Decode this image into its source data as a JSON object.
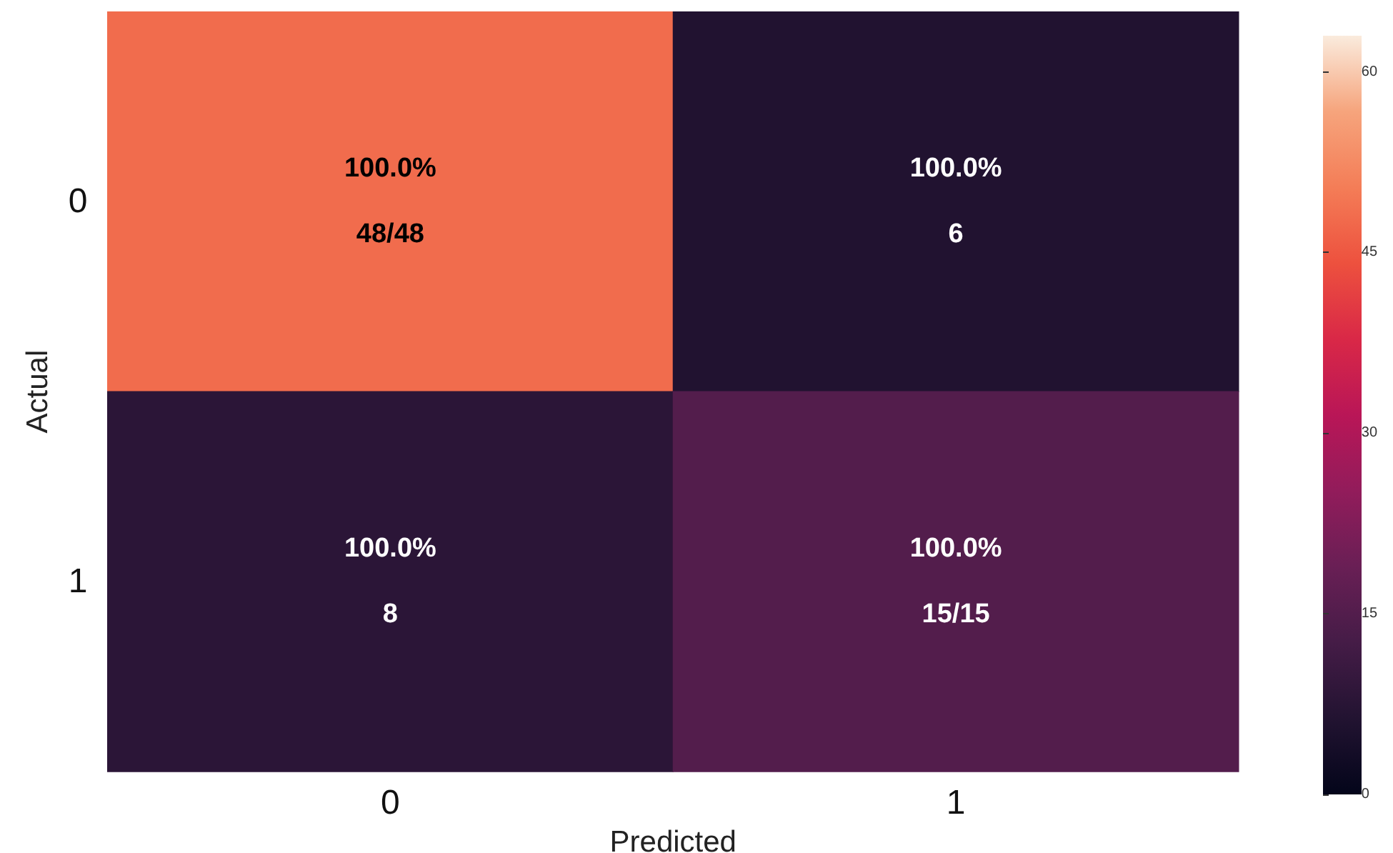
{
  "chart_data": {
    "type": "heatmap",
    "xlabel": "Predicted",
    "ylabel": "Actual",
    "categories": [
      "0",
      "1"
    ],
    "y_categories": [
      "0",
      "1"
    ],
    "cells": [
      [
        48,
        6
      ],
      [
        8,
        15
      ]
    ],
    "cell_labels": [
      [
        "100.0%\n48/48",
        "100.0%\n6"
      ],
      [
        "100.0%\n8",
        "100.0%\n15/15"
      ]
    ],
    "clim": [
      0,
      63
    ],
    "cticks": [
      0,
      15,
      30,
      45,
      60
    ]
  }
}
